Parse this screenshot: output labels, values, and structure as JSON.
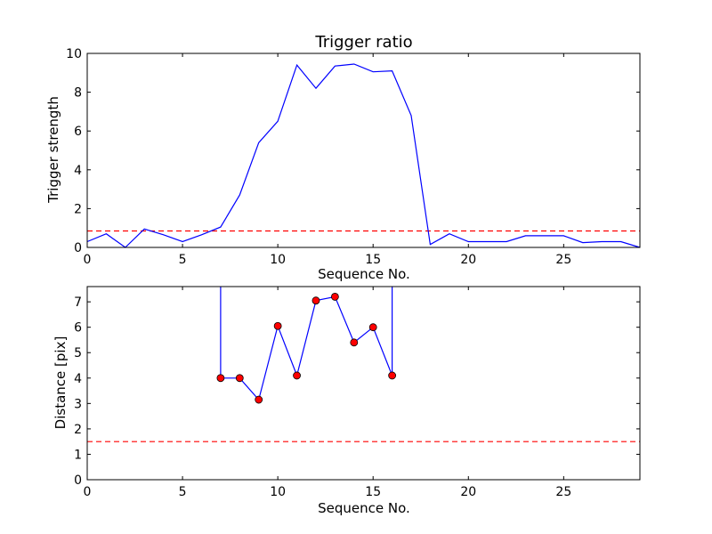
{
  "chart_data": [
    {
      "type": "line",
      "title": "Trigger ratio",
      "xlabel": "Sequence No.",
      "ylabel": "Trigger strength",
      "xlim": [
        0,
        29
      ],
      "ylim": [
        0,
        10
      ],
      "xticks": [
        0,
        5,
        10,
        15,
        20,
        25
      ],
      "yticks": [
        0,
        2,
        4,
        6,
        8,
        10
      ],
      "grid": false,
      "series": [
        {
          "color": "#0000ff",
          "style": "solid",
          "x": [
            0,
            1,
            2,
            3,
            4,
            5,
            6,
            7,
            8,
            9,
            10,
            11,
            12,
            13,
            14,
            15,
            16,
            17,
            18,
            19,
            20,
            21,
            22,
            23,
            24,
            25,
            26,
            27,
            28,
            29
          ],
          "y": [
            0.3,
            0.7,
            0.0,
            0.95,
            0.65,
            0.3,
            0.65,
            1.05,
            2.7,
            5.4,
            6.5,
            9.4,
            8.2,
            9.35,
            9.45,
            9.05,
            9.1,
            6.8,
            0.15,
            0.7,
            0.3,
            0.3,
            0.3,
            0.6,
            0.6,
            0.6,
            0.25,
            0.3,
            0.3,
            0.0
          ]
        }
      ],
      "threshold": {
        "y": 0.85,
        "color": "#ff0000",
        "style": "dashed"
      }
    },
    {
      "type": "line",
      "title": "",
      "xlabel": "Sequence No.",
      "ylabel": "Distance [pix]",
      "xlim": [
        0,
        29
      ],
      "ylim": [
        0,
        7.6
      ],
      "xticks": [
        0,
        5,
        10,
        15,
        20,
        25
      ],
      "yticks": [
        0,
        1,
        2,
        3,
        4,
        5,
        6,
        7
      ],
      "grid": false,
      "series": [
        {
          "color": "#0000ff",
          "style": "solid",
          "marker_color": "#ff0000",
          "x": [
            7,
            8,
            9,
            10,
            11,
            12,
            13,
            14,
            15,
            16
          ],
          "y": [
            4.0,
            4.0,
            3.15,
            6.05,
            4.1,
            7.05,
            7.2,
            5.4,
            6.0,
            4.1
          ],
          "line_to_top_at_ends": true
        }
      ],
      "threshold": {
        "y": 1.5,
        "color": "#ff0000",
        "style": "dashed"
      }
    }
  ]
}
